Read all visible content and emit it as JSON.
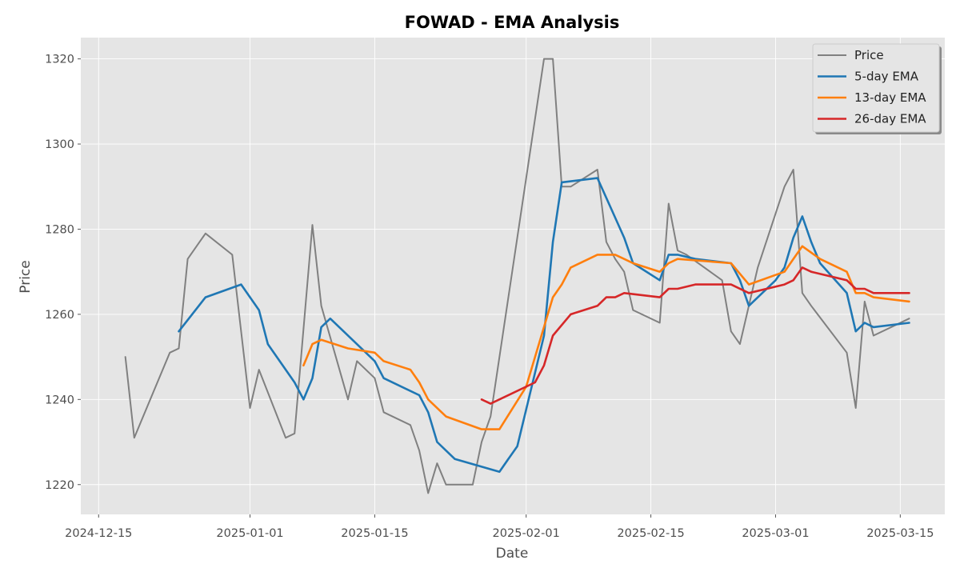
{
  "chart_data": {
    "type": "line",
    "title": "FOWAD - EMA Analysis",
    "xlabel": "Date",
    "ylabel": "Price",
    "x_ticks": [
      "2024-12-15",
      "2025-01-01",
      "2025-01-15",
      "2025-02-01",
      "2025-02-15",
      "2025-03-01",
      "2025-03-15"
    ],
    "y_ticks": [
      1220,
      1240,
      1260,
      1280,
      1300,
      1320
    ],
    "xlim": [
      "2024-12-13",
      "2025-03-20"
    ],
    "ylim": [
      1213,
      1325
    ],
    "grid": true,
    "legend_position": "top-right",
    "series": [
      {
        "name": "Price",
        "color": "#808080",
        "points": [
          [
            "2024-12-18",
            1250
          ],
          [
            "2024-12-19",
            1231
          ],
          [
            "2024-12-23",
            1251
          ],
          [
            "2024-12-24",
            1252
          ],
          [
            "2024-12-25",
            1273
          ],
          [
            "2024-12-27",
            1279
          ],
          [
            "2024-12-30",
            1274
          ],
          [
            "2024-12-31",
            1256
          ],
          [
            "2025-01-01",
            1238
          ],
          [
            "2025-01-02",
            1247
          ],
          [
            "2025-01-05",
            1231
          ],
          [
            "2025-01-06",
            1232
          ],
          [
            "2025-01-08",
            1281
          ],
          [
            "2025-01-09",
            1262
          ],
          [
            "2025-01-12",
            1240
          ],
          [
            "2025-01-13",
            1249
          ],
          [
            "2025-01-15",
            1245
          ],
          [
            "2025-01-16",
            1237
          ],
          [
            "2025-01-19",
            1234
          ],
          [
            "2025-01-20",
            1228
          ],
          [
            "2025-01-21",
            1218
          ],
          [
            "2025-01-22",
            1225
          ],
          [
            "2025-01-23",
            1220
          ],
          [
            "2025-01-26",
            1220
          ],
          [
            "2025-01-27",
            1230
          ],
          [
            "2025-01-28",
            1236
          ],
          [
            "2025-02-03",
            1320
          ],
          [
            "2025-02-04",
            1320
          ],
          [
            "2025-02-05",
            1290
          ],
          [
            "2025-02-06",
            1290
          ],
          [
            "2025-02-09",
            1294
          ],
          [
            "2025-02-10",
            1277
          ],
          [
            "2025-02-11",
            1273
          ],
          [
            "2025-02-12",
            1270
          ],
          [
            "2025-02-13",
            1261
          ],
          [
            "2025-02-16",
            1258
          ],
          [
            "2025-02-17",
            1286
          ],
          [
            "2025-02-18",
            1275
          ],
          [
            "2025-02-19",
            1274
          ],
          [
            "2025-02-23",
            1268
          ],
          [
            "2025-02-24",
            1256
          ],
          [
            "2025-02-25",
            1253
          ],
          [
            "2025-02-27",
            1271
          ],
          [
            "2025-03-02",
            1290
          ],
          [
            "2025-03-03",
            1294
          ],
          [
            "2025-03-04",
            1265
          ],
          [
            "2025-03-05",
            1262
          ],
          [
            "2025-03-09",
            1251
          ],
          [
            "2025-03-10",
            1238
          ],
          [
            "2025-03-11",
            1263
          ],
          [
            "2025-03-12",
            1255
          ],
          [
            "2025-03-16",
            1259
          ]
        ]
      },
      {
        "name": "5-day EMA",
        "color": "#1f77b4",
        "points": [
          [
            "2024-12-24",
            1256
          ],
          [
            "2024-12-27",
            1264
          ],
          [
            "2024-12-31",
            1267
          ],
          [
            "2025-01-02",
            1261
          ],
          [
            "2025-01-03",
            1253
          ],
          [
            "2025-01-06",
            1244
          ],
          [
            "2025-01-07",
            1240
          ],
          [
            "2025-01-08",
            1245
          ],
          [
            "2025-01-09",
            1257
          ],
          [
            "2025-01-10",
            1259
          ],
          [
            "2025-01-14",
            1251
          ],
          [
            "2025-01-15",
            1249
          ],
          [
            "2025-01-16",
            1245
          ],
          [
            "2025-01-20",
            1241
          ],
          [
            "2025-01-21",
            1237
          ],
          [
            "2025-01-22",
            1230
          ],
          [
            "2025-01-23",
            1228
          ],
          [
            "2025-01-24",
            1226
          ],
          [
            "2025-01-29",
            1223
          ],
          [
            "2025-01-30",
            1226
          ],
          [
            "2025-01-31",
            1229
          ],
          [
            "2025-02-03",
            1255
          ],
          [
            "2025-02-04",
            1277
          ],
          [
            "2025-02-05",
            1291
          ],
          [
            "2025-02-09",
            1292
          ],
          [
            "2025-02-12",
            1278
          ],
          [
            "2025-02-13",
            1272
          ],
          [
            "2025-02-16",
            1268
          ],
          [
            "2025-02-17",
            1274
          ],
          [
            "2025-02-18",
            1274
          ],
          [
            "2025-02-20",
            1273
          ],
          [
            "2025-02-24",
            1272
          ],
          [
            "2025-02-25",
            1268
          ],
          [
            "2025-02-26",
            1262
          ],
          [
            "2025-03-01",
            1268
          ],
          [
            "2025-03-02",
            1271
          ],
          [
            "2025-03-03",
            1278
          ],
          [
            "2025-03-04",
            1283
          ],
          [
            "2025-03-05",
            1277
          ],
          [
            "2025-03-06",
            1272
          ],
          [
            "2025-03-09",
            1265
          ],
          [
            "2025-03-10",
            1256
          ],
          [
            "2025-03-11",
            1258
          ],
          [
            "2025-03-12",
            1257
          ],
          [
            "2025-03-16",
            1258
          ]
        ]
      },
      {
        "name": "13-day EMA",
        "color": "#ff7f0e",
        "points": [
          [
            "2025-01-07",
            1248
          ],
          [
            "2025-01-08",
            1253
          ],
          [
            "2025-01-09",
            1254
          ],
          [
            "2025-01-12",
            1252
          ],
          [
            "2025-01-15",
            1251
          ],
          [
            "2025-01-16",
            1249
          ],
          [
            "2025-01-19",
            1247
          ],
          [
            "2025-01-20",
            1244
          ],
          [
            "2025-01-21",
            1240
          ],
          [
            "2025-01-23",
            1236
          ],
          [
            "2025-01-27",
            1233
          ],
          [
            "2025-01-29",
            1233
          ],
          [
            "2025-02-01",
            1243
          ],
          [
            "2025-02-04",
            1264
          ],
          [
            "2025-02-05",
            1267
          ],
          [
            "2025-02-06",
            1271
          ],
          [
            "2025-02-09",
            1274
          ],
          [
            "2025-02-10",
            1274
          ],
          [
            "2025-02-11",
            1274
          ],
          [
            "2025-02-12",
            1273
          ],
          [
            "2025-02-13",
            1272
          ],
          [
            "2025-02-16",
            1270
          ],
          [
            "2025-02-17",
            1272
          ],
          [
            "2025-02-18",
            1273
          ],
          [
            "2025-02-24",
            1272
          ],
          [
            "2025-02-26",
            1267
          ],
          [
            "2025-03-02",
            1270
          ],
          [
            "2025-03-03",
            1273
          ],
          [
            "2025-03-04",
            1276
          ],
          [
            "2025-03-06",
            1273
          ],
          [
            "2025-03-09",
            1270
          ],
          [
            "2025-03-10",
            1265
          ],
          [
            "2025-03-11",
            1265
          ],
          [
            "2025-03-12",
            1264
          ],
          [
            "2025-03-16",
            1263
          ]
        ]
      },
      {
        "name": "26-day EMA",
        "color": "#d62728",
        "points": [
          [
            "2025-01-27",
            1240
          ],
          [
            "2025-01-28",
            1239
          ],
          [
            "2025-02-02",
            1244
          ],
          [
            "2025-02-03",
            1248
          ],
          [
            "2025-02-04",
            1255
          ],
          [
            "2025-02-06",
            1260
          ],
          [
            "2025-02-09",
            1262
          ],
          [
            "2025-02-10",
            1264
          ],
          [
            "2025-02-11",
            1264
          ],
          [
            "2025-02-12",
            1265
          ],
          [
            "2025-02-16",
            1264
          ],
          [
            "2025-02-17",
            1266
          ],
          [
            "2025-02-18",
            1266
          ],
          [
            "2025-02-20",
            1267
          ],
          [
            "2025-02-24",
            1267
          ],
          [
            "2025-02-26",
            1265
          ],
          [
            "2025-03-02",
            1267
          ],
          [
            "2025-03-03",
            1268
          ],
          [
            "2025-03-04",
            1271
          ],
          [
            "2025-03-05",
            1270
          ],
          [
            "2025-03-09",
            1268
          ],
          [
            "2025-03-10",
            1266
          ],
          [
            "2025-03-11",
            1266
          ],
          [
            "2025-03-12",
            1265
          ],
          [
            "2025-03-16",
            1265
          ]
        ]
      }
    ]
  }
}
